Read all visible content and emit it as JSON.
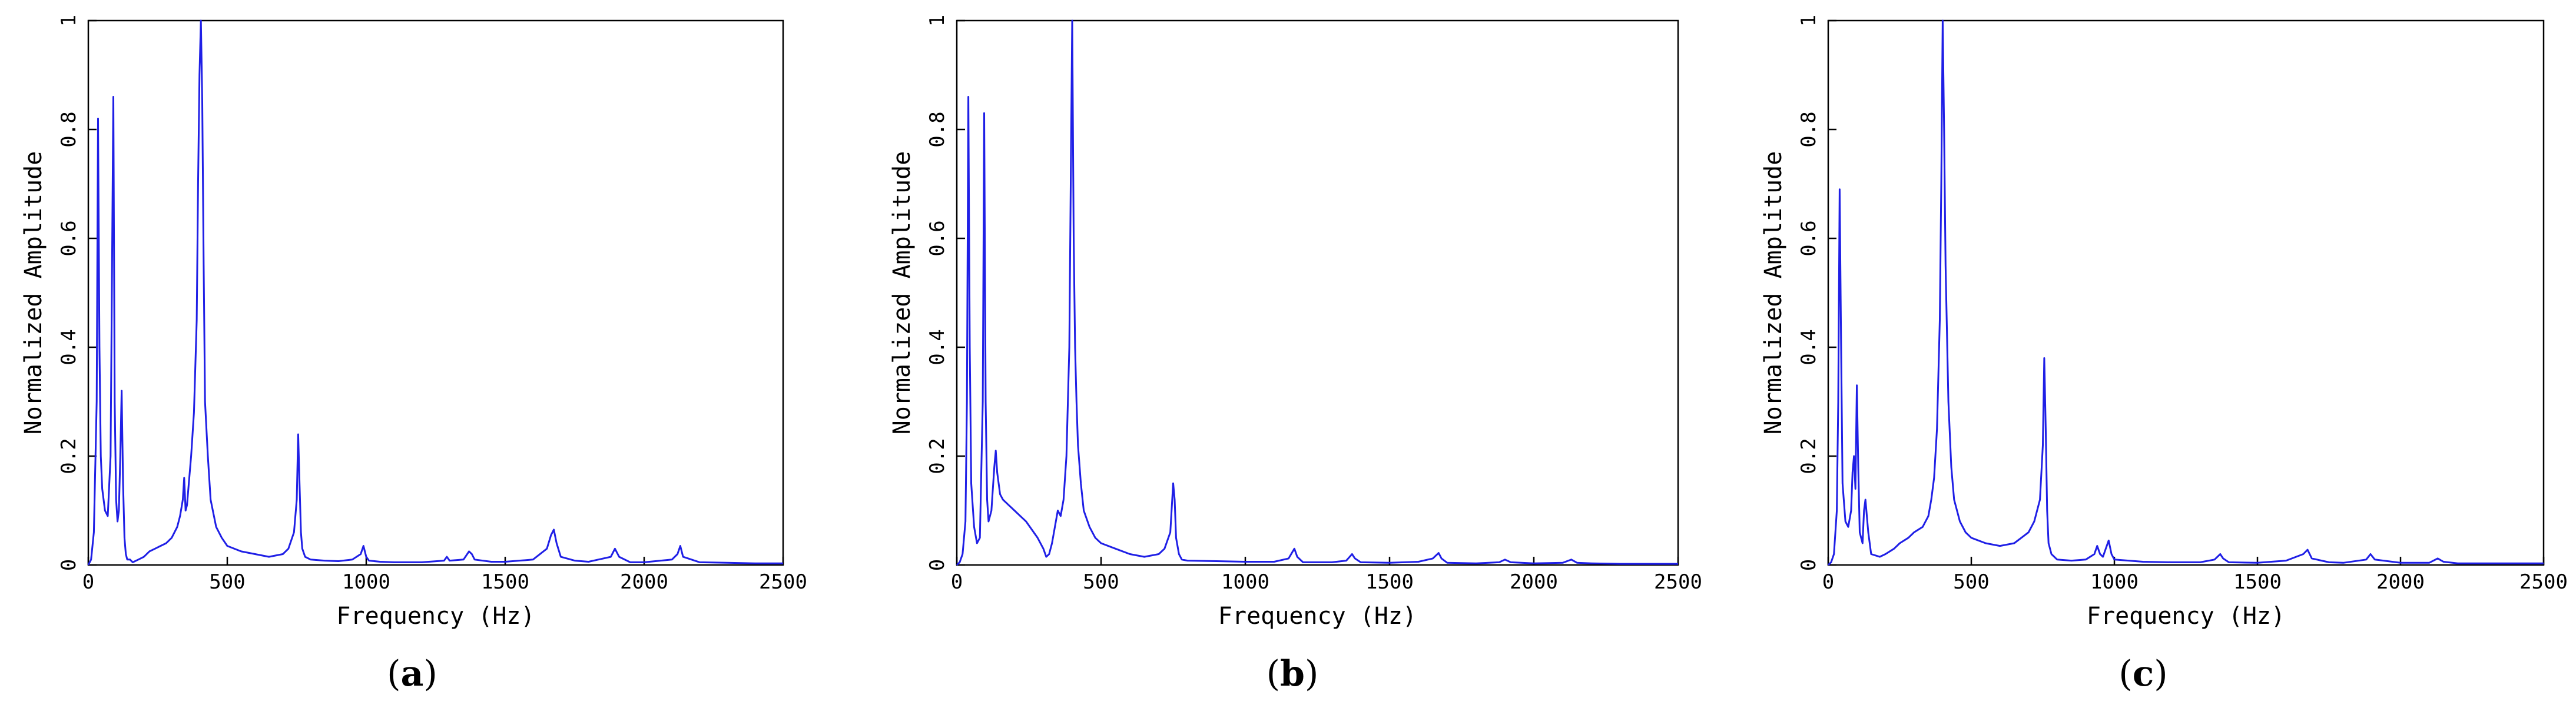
{
  "chart_data": [
    {
      "type": "line",
      "panel_label": "a",
      "xlabel": "Frequency (Hz)",
      "ylabel": "Normalized Amplitude",
      "xlim": [
        0,
        2500
      ],
      "ylim": [
        0,
        1
      ],
      "xticks": [
        0,
        500,
        1000,
        1500,
        2000,
        2500
      ],
      "yticks": [
        0,
        0.2,
        0.4,
        0.6,
        0.8,
        1
      ],
      "ytick_labels": [
        "0",
        "0.2",
        "0.4",
        "0.6",
        "0.8",
        "1"
      ],
      "grid": false,
      "series_color": "#1f1fe6",
      "x": [
        0,
        10,
        20,
        30,
        35,
        40,
        45,
        50,
        60,
        70,
        80,
        90,
        95,
        100,
        105,
        110,
        115,
        120,
        125,
        130,
        135,
        140,
        150,
        160,
        180,
        200,
        220,
        240,
        260,
        280,
        300,
        320,
        330,
        340,
        345,
        350,
        355,
        360,
        370,
        380,
        390,
        395,
        400,
        405,
        410,
        415,
        420,
        430,
        440,
        460,
        480,
        500,
        550,
        600,
        650,
        700,
        720,
        740,
        750,
        755,
        760,
        765,
        770,
        780,
        800,
        850,
        900,
        950,
        980,
        990,
        1000,
        1010,
        1050,
        1100,
        1200,
        1280,
        1290,
        1300,
        1350,
        1370,
        1380,
        1390,
        1450,
        1500,
        1600,
        1650,
        1665,
        1675,
        1685,
        1700,
        1750,
        1800,
        1880,
        1895,
        1910,
        1950,
        2000,
        2100,
        2120,
        2130,
        2140,
        2200,
        2300,
        2400,
        2500
      ],
      "y": [
        0,
        0.01,
        0.06,
        0.3,
        0.82,
        0.4,
        0.2,
        0.14,
        0.1,
        0.09,
        0.2,
        0.86,
        0.3,
        0.12,
        0.08,
        0.1,
        0.2,
        0.32,
        0.15,
        0.05,
        0.02,
        0.01,
        0.01,
        0.005,
        0.01,
        0.015,
        0.025,
        0.03,
        0.035,
        0.04,
        0.05,
        0.07,
        0.09,
        0.12,
        0.16,
        0.1,
        0.11,
        0.14,
        0.2,
        0.28,
        0.45,
        0.7,
        0.9,
        1.0,
        0.85,
        0.55,
        0.3,
        0.2,
        0.12,
        0.07,
        0.05,
        0.035,
        0.025,
        0.02,
        0.015,
        0.02,
        0.03,
        0.06,
        0.12,
        0.24,
        0.15,
        0.06,
        0.03,
        0.015,
        0.01,
        0.008,
        0.007,
        0.01,
        0.02,
        0.035,
        0.015,
        0.008,
        0.006,
        0.005,
        0.005,
        0.008,
        0.015,
        0.008,
        0.01,
        0.025,
        0.02,
        0.01,
        0.006,
        0.006,
        0.01,
        0.03,
        0.055,
        0.065,
        0.04,
        0.015,
        0.008,
        0.006,
        0.015,
        0.03,
        0.015,
        0.005,
        0.005,
        0.01,
        0.02,
        0.035,
        0.015,
        0.005,
        0.004,
        0.003,
        0.003
      ]
    },
    {
      "type": "line",
      "panel_label": "b",
      "xlabel": "Frequency (Hz)",
      "ylabel": "Normalized Amplitude",
      "xlim": [
        0,
        2500
      ],
      "ylim": [
        0,
        1
      ],
      "xticks": [
        0,
        500,
        1000,
        1500,
        2000,
        2500
      ],
      "yticks": [
        0,
        0.2,
        0.4,
        0.6,
        0.8,
        1
      ],
      "ytick_labels": [
        "0",
        "0.2",
        "0.4",
        "0.6",
        "0.8",
        "1"
      ],
      "grid": false,
      "series_color": "#1f1fe6",
      "x": [
        0,
        10,
        20,
        30,
        35,
        40,
        45,
        50,
        60,
        70,
        80,
        90,
        95,
        100,
        105,
        110,
        120,
        130,
        135,
        140,
        150,
        160,
        180,
        200,
        220,
        240,
        260,
        280,
        300,
        310,
        320,
        330,
        340,
        350,
        360,
        370,
        380,
        390,
        395,
        400,
        405,
        410,
        415,
        420,
        430,
        440,
        460,
        480,
        500,
        550,
        600,
        650,
        700,
        720,
        740,
        750,
        755,
        760,
        770,
        780,
        800,
        900,
        1000,
        1100,
        1150,
        1170,
        1180,
        1200,
        1300,
        1350,
        1370,
        1380,
        1400,
        1500,
        1600,
        1650,
        1670,
        1680,
        1700,
        1800,
        1880,
        1900,
        1920,
        2000,
        2100,
        2120,
        2130,
        2150,
        2200,
        2300,
        2400,
        2500
      ],
      "y": [
        0,
        0.005,
        0.02,
        0.08,
        0.3,
        0.86,
        0.4,
        0.15,
        0.07,
        0.04,
        0.05,
        0.3,
        0.83,
        0.3,
        0.12,
        0.08,
        0.1,
        0.18,
        0.21,
        0.17,
        0.13,
        0.12,
        0.11,
        0.1,
        0.09,
        0.08,
        0.065,
        0.05,
        0.03,
        0.015,
        0.02,
        0.04,
        0.07,
        0.1,
        0.09,
        0.12,
        0.2,
        0.4,
        0.7,
        1.0,
        0.6,
        0.4,
        0.3,
        0.22,
        0.15,
        0.1,
        0.07,
        0.05,
        0.04,
        0.03,
        0.02,
        0.015,
        0.02,
        0.03,
        0.06,
        0.15,
        0.12,
        0.05,
        0.02,
        0.01,
        0.008,
        0.007,
        0.006,
        0.006,
        0.012,
        0.03,
        0.015,
        0.005,
        0.005,
        0.008,
        0.02,
        0.012,
        0.005,
        0.004,
        0.006,
        0.012,
        0.022,
        0.012,
        0.004,
        0.003,
        0.005,
        0.01,
        0.005,
        0.003,
        0.004,
        0.008,
        0.01,
        0.004,
        0.003,
        0.002,
        0.002,
        0.002
      ]
    },
    {
      "type": "line",
      "panel_label": "c",
      "xlabel": "Frequency (Hz)",
      "ylabel": "Normalized Amplitude",
      "xlim": [
        0,
        2500
      ],
      "ylim": [
        0,
        1
      ],
      "xticks": [
        0,
        500,
        1000,
        1500,
        2000,
        2500
      ],
      "yticks": [
        0,
        0.2,
        0.4,
        0.6,
        0.8,
        1
      ],
      "ytick_labels": [
        "0",
        "0.2",
        "0.4",
        "0.6",
        "0.8",
        "1"
      ],
      "grid": false,
      "series_color": "#1f1fe6",
      "x": [
        0,
        10,
        20,
        30,
        35,
        40,
        45,
        50,
        60,
        70,
        80,
        85,
        90,
        95,
        100,
        105,
        110,
        120,
        125,
        130,
        140,
        150,
        180,
        200,
        230,
        250,
        280,
        300,
        330,
        350,
        360,
        370,
        380,
        390,
        395,
        400,
        405,
        410,
        420,
        430,
        440,
        460,
        480,
        500,
        550,
        600,
        650,
        700,
        720,
        740,
        750,
        755,
        760,
        765,
        770,
        780,
        800,
        850,
        900,
        930,
        940,
        950,
        960,
        970,
        980,
        990,
        1000,
        1050,
        1100,
        1200,
        1300,
        1350,
        1370,
        1380,
        1400,
        1500,
        1600,
        1660,
        1675,
        1690,
        1750,
        1800,
        1880,
        1895,
        1910,
        2000,
        2100,
        2130,
        2150,
        2200,
        2300,
        2400,
        2500
      ],
      "y": [
        0,
        0.005,
        0.02,
        0.1,
        0.3,
        0.69,
        0.4,
        0.15,
        0.08,
        0.07,
        0.1,
        0.17,
        0.2,
        0.14,
        0.33,
        0.18,
        0.06,
        0.04,
        0.1,
        0.12,
        0.06,
        0.02,
        0.015,
        0.02,
        0.03,
        0.04,
        0.05,
        0.06,
        0.07,
        0.09,
        0.12,
        0.16,
        0.25,
        0.45,
        0.7,
        1.0,
        0.8,
        0.55,
        0.3,
        0.18,
        0.12,
        0.08,
        0.06,
        0.05,
        0.04,
        0.035,
        0.04,
        0.06,
        0.08,
        0.12,
        0.22,
        0.38,
        0.25,
        0.1,
        0.04,
        0.02,
        0.01,
        0.008,
        0.01,
        0.02,
        0.035,
        0.02,
        0.015,
        0.03,
        0.045,
        0.02,
        0.01,
        0.008,
        0.006,
        0.005,
        0.005,
        0.01,
        0.02,
        0.012,
        0.005,
        0.004,
        0.008,
        0.02,
        0.028,
        0.012,
        0.005,
        0.004,
        0.01,
        0.02,
        0.01,
        0.004,
        0.004,
        0.012,
        0.006,
        0.003,
        0.003,
        0.003,
        0.003
      ]
    }
  ]
}
